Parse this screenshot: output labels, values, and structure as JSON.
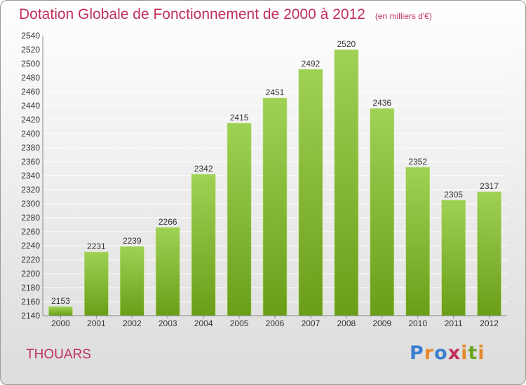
{
  "header": {
    "title": "Dotation Globale de Fonctionnement de 2000 à 2012",
    "unit": "(en milliers d'€)"
  },
  "footer": {
    "commune": "THOUARS",
    "logo_text": "Proxiti",
    "logo_colors": [
      "#3a7fcf",
      "#e6892b",
      "#3a7fcf",
      "#c0305a",
      "#e6892b",
      "#6aa321",
      "#e6892b"
    ]
  },
  "colors": {
    "bar_light": "#9fd155",
    "bar_dark": "#6a9e18",
    "grid": "#ffffff",
    "title": "#c0305a"
  },
  "chart_data": {
    "type": "bar",
    "categories": [
      "2000",
      "2001",
      "2002",
      "2003",
      "2004",
      "2005",
      "2006",
      "2007",
      "2008",
      "2009",
      "2010",
      "2011",
      "2012"
    ],
    "values": [
      2153,
      2231,
      2239,
      2266,
      2342,
      2415,
      2451,
      2492,
      2520,
      2436,
      2352,
      2305,
      2317
    ],
    "ylim": [
      2140,
      2540
    ],
    "ytick_step": 20,
    "grid": true
  }
}
